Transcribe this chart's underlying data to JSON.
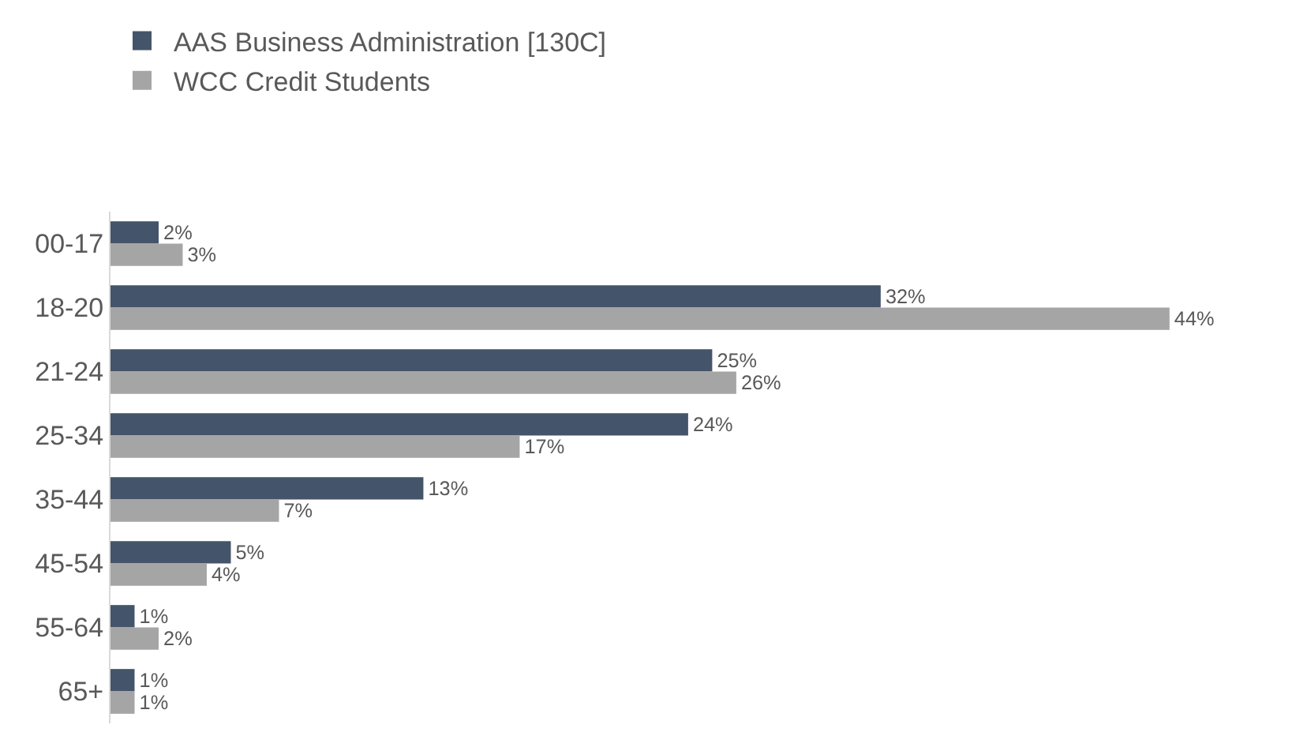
{
  "chart_data": {
    "type": "bar",
    "orientation": "horizontal",
    "categories": [
      "00-17",
      "18-20",
      "21-24",
      "25-34",
      "35-44",
      "45-54",
      "55-64",
      "65+"
    ],
    "series": [
      {
        "name": "AAS Business Administration [130C]",
        "color": "#44546a",
        "values": [
          2,
          32,
          25,
          24,
          13,
          5,
          1,
          1
        ],
        "value_labels": [
          "2%",
          "32%",
          "25%",
          "24%",
          "13%",
          "5%",
          "1%",
          "1%"
        ]
      },
      {
        "name": "WCC Credit Students",
        "color": "#a5a5a5",
        "values": [
          3,
          44,
          26,
          17,
          7,
          4,
          2,
          1
        ],
        "value_labels": [
          "3%",
          "44%",
          "26%",
          "17%",
          "7%",
          "4%",
          "2%",
          "1%"
        ]
      }
    ],
    "legend": "top left",
    "grid": false
  }
}
